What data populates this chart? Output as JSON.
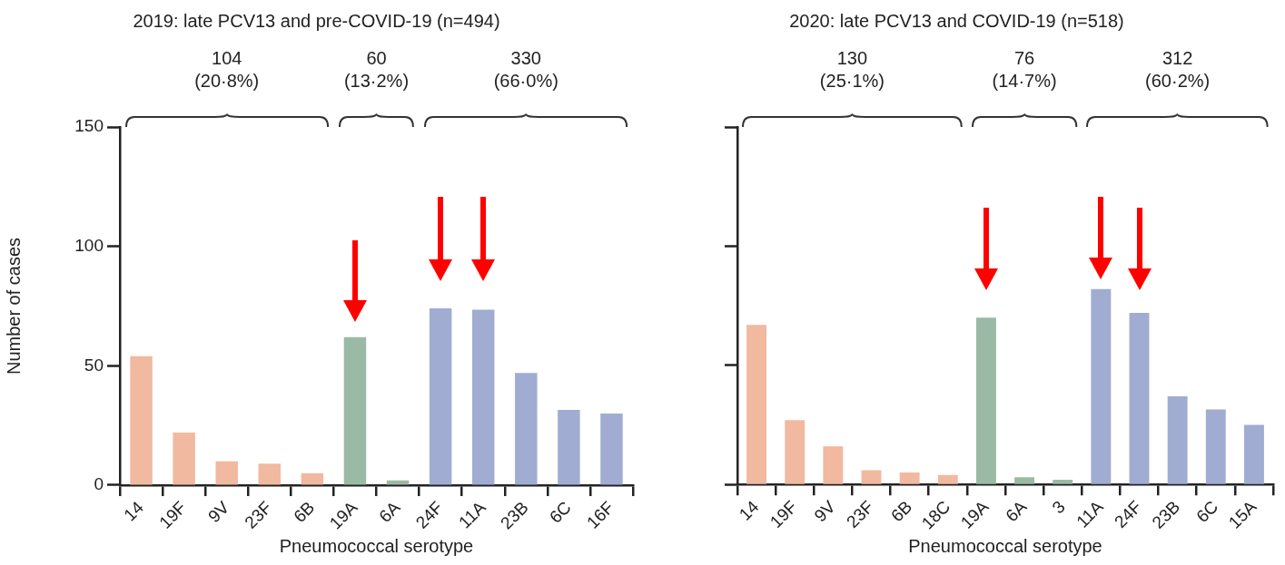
{
  "chart_data": [
    {
      "type": "bar",
      "title": "2019: late PCV13 and pre-COVID-19 (n=494)",
      "xlabel": "Pneumococcal serotype",
      "ylabel": "Number of cases",
      "categories": [
        "14",
        "19F",
        "9V",
        "23F",
        "6B",
        "19A",
        "6A",
        "24F",
        "11A",
        "23B",
        "6C",
        "16F"
      ],
      "values": [
        54,
        22,
        10,
        9,
        5,
        62,
        2,
        74,
        73.5,
        47,
        31.5,
        30
      ],
      "colors": [
        "#f0b9a0",
        "#f0b9a0",
        "#f0b9a0",
        "#f0b9a0",
        "#f0b9a0",
        "#9bbaa5",
        "#9bbaa5",
        "#a0acd2",
        "#a0acd2",
        "#a0acd2",
        "#a0acd2",
        "#a0acd2"
      ],
      "ylim": [
        0,
        150
      ],
      "yticks": [
        0,
        50,
        100,
        150
      ],
      "grid": false,
      "legend": false,
      "annotations": [
        "104 (20·8%)",
        "60 (13·2%)",
        "330 (66·0%)"
      ]
    },
    {
      "type": "bar",
      "title": "2020: late PCV13 and COVID-19 (n=518)",
      "xlabel": "Pneumococcal serotype",
      "categories": [
        "14",
        "19F",
        "9V",
        "23F",
        "6B",
        "18C",
        "19A",
        "6A",
        "3",
        "11A",
        "24F",
        "23B",
        "6C",
        "15A"
      ],
      "values": [
        67,
        27,
        16,
        6,
        5,
        4,
        70,
        3,
        2,
        82,
        72,
        37,
        31.5,
        25
      ],
      "colors": [
        "#f0b9a0",
        "#f0b9a0",
        "#f0b9a0",
        "#f0b9a0",
        "#f0b9a0",
        "#f0b9a0",
        "#9bbaa5",
        "#9bbaa5",
        "#9bbaa5",
        "#a0acd2",
        "#a0acd2",
        "#a0acd2",
        "#a0acd2",
        "#a0acd2"
      ],
      "ylim": [
        0,
        150
      ],
      "yticks": [
        0,
        50,
        100,
        150
      ],
      "grid": false,
      "legend": false,
      "tick_labels": "x",
      "annotations": [
        "130 (25·1%)",
        "76 (14·7%)",
        "312 (60·2%)"
      ]
    }
  ]
}
